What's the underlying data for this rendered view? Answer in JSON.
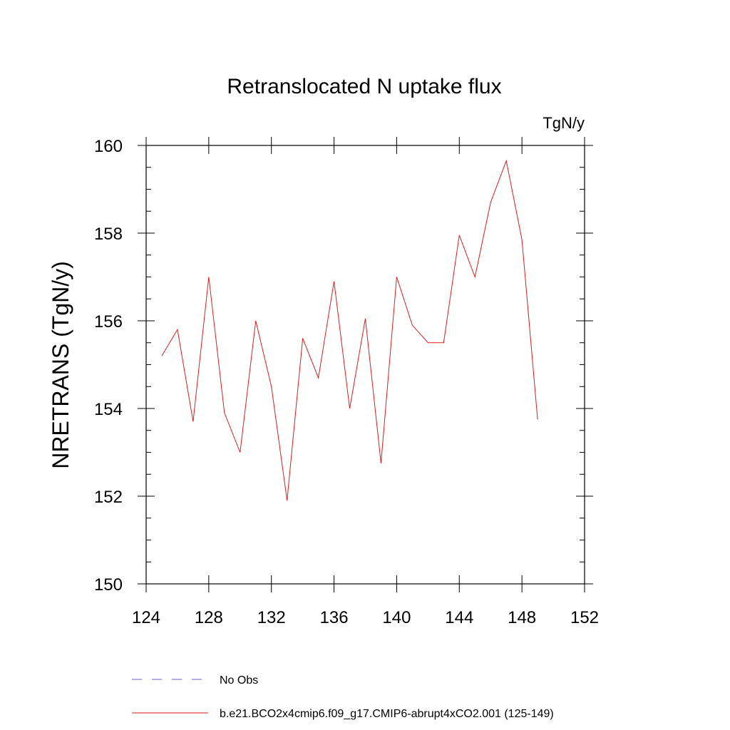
{
  "chart_data": {
    "type": "line",
    "title": "Retranslocated N uptake flux",
    "units": "TgN/y",
    "xlabel": "",
    "ylabel": "NRETRANS  (TgN/y)",
    "xlim": [
      124,
      152
    ],
    "ylim": [
      150,
      160
    ],
    "xticks": [
      124,
      128,
      132,
      136,
      140,
      144,
      148,
      152
    ],
    "yticks": [
      150,
      152,
      154,
      156,
      158,
      160
    ],
    "series": [
      {
        "name": "b.e21.BCO2x4cmip6.f09_g17.CMIP6-abrupt4xCO2.001 (125-149)",
        "color": "#e31a1c",
        "style": "solid",
        "x": [
          125,
          126,
          127,
          128,
          129,
          130,
          131,
          132,
          133,
          134,
          135,
          136,
          137,
          138,
          139,
          140,
          141,
          142,
          143,
          144,
          145,
          146,
          147,
          148,
          149
        ],
        "y": [
          155.2,
          155.8,
          153.7,
          157.0,
          153.9,
          153.0,
          156.0,
          154.5,
          151.9,
          155.6,
          154.7,
          156.9,
          154.0,
          156.05,
          152.75,
          157.0,
          155.9,
          155.5,
          155.5,
          157.95,
          157.0,
          158.7,
          159.65,
          157.85,
          153.75
        ]
      }
    ],
    "legend": [
      {
        "label": "No Obs",
        "color": "#6a5acd",
        "style": "dashed"
      },
      {
        "label": "b.e21.BCO2x4cmip6.f09_g17.CMIP6-abrupt4xCO2.001 (125-149)",
        "color": "#e31a1c",
        "style": "solid"
      }
    ]
  }
}
